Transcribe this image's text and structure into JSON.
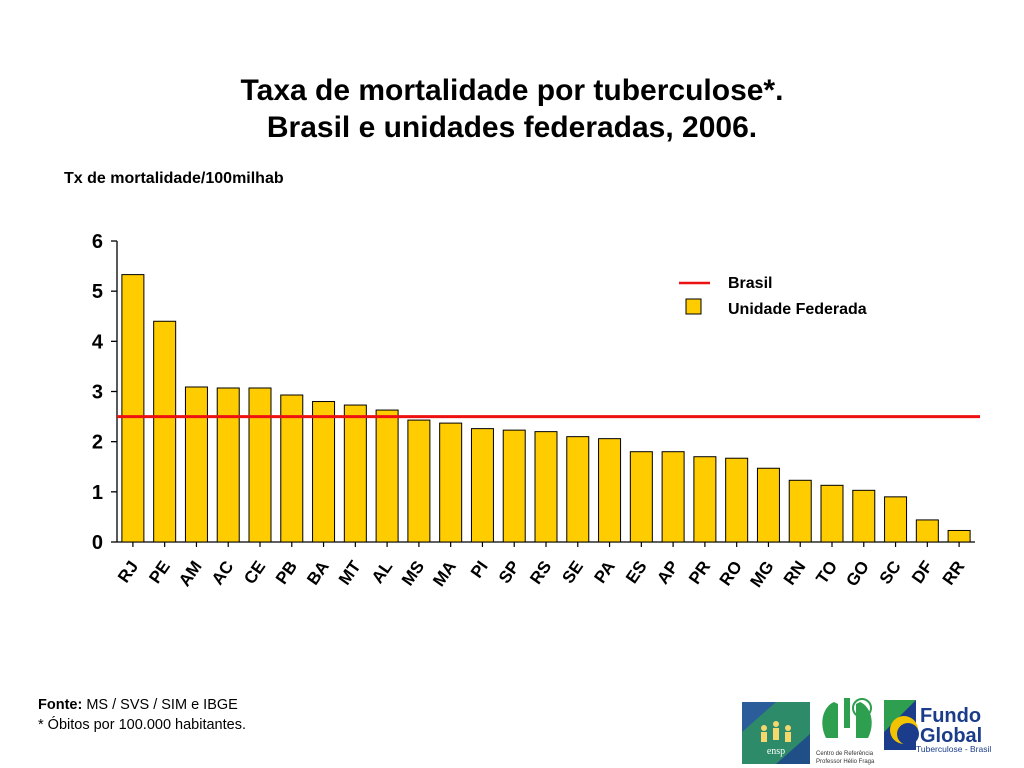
{
  "chart_data": {
    "type": "bar",
    "title": [
      "Taxa de mortalidade por tuberculose*.",
      "Brasil e unidades federadas, 2006."
    ],
    "ylabel": "Tx de mortalidade/100milhab",
    "ylim": [
      0,
      6
    ],
    "yticks": [
      "0",
      "1",
      "2",
      "3",
      "4",
      "5",
      "6"
    ],
    "grid": false,
    "legend_position": "top-right",
    "categories": [
      "RJ",
      "PE",
      "AM",
      "AC",
      "CE",
      "PB",
      "BA",
      "MT",
      "AL",
      "MS",
      "MA",
      "PI",
      "SP",
      "RS",
      "SE",
      "PA",
      "ES",
      "AP",
      "PR",
      "RO",
      "MG",
      "RN",
      "TO",
      "GO",
      "SC",
      "DF",
      "RR"
    ],
    "series": [
      {
        "name": "Unidade Federada",
        "color": "#FFCC00",
        "values": [
          5.33,
          4.4,
          3.09,
          3.07,
          3.07,
          2.93,
          2.8,
          2.73,
          2.63,
          2.43,
          2.37,
          2.26,
          2.23,
          2.2,
          2.1,
          2.06,
          1.8,
          1.8,
          1.7,
          1.67,
          1.47,
          1.23,
          1.13,
          1.03,
          0.9,
          0.44,
          0.23
        ]
      }
    ],
    "reference_line": {
      "name": "Brasil",
      "value": 2.5,
      "color": "#EE1111"
    }
  },
  "footnote": {
    "source_label": "Fonte:",
    "source_text": " MS / SVS / SIM e IBGE",
    "note": "*  Óbitos por 100.000 habitantes."
  },
  "logos": {
    "ensp": "ensp",
    "centro": [
      "Centro de Referência",
      "Professor Hélio Fraga"
    ],
    "fundo": [
      "Fundo",
      "Global",
      "Tuberculose - Brasil"
    ]
  }
}
